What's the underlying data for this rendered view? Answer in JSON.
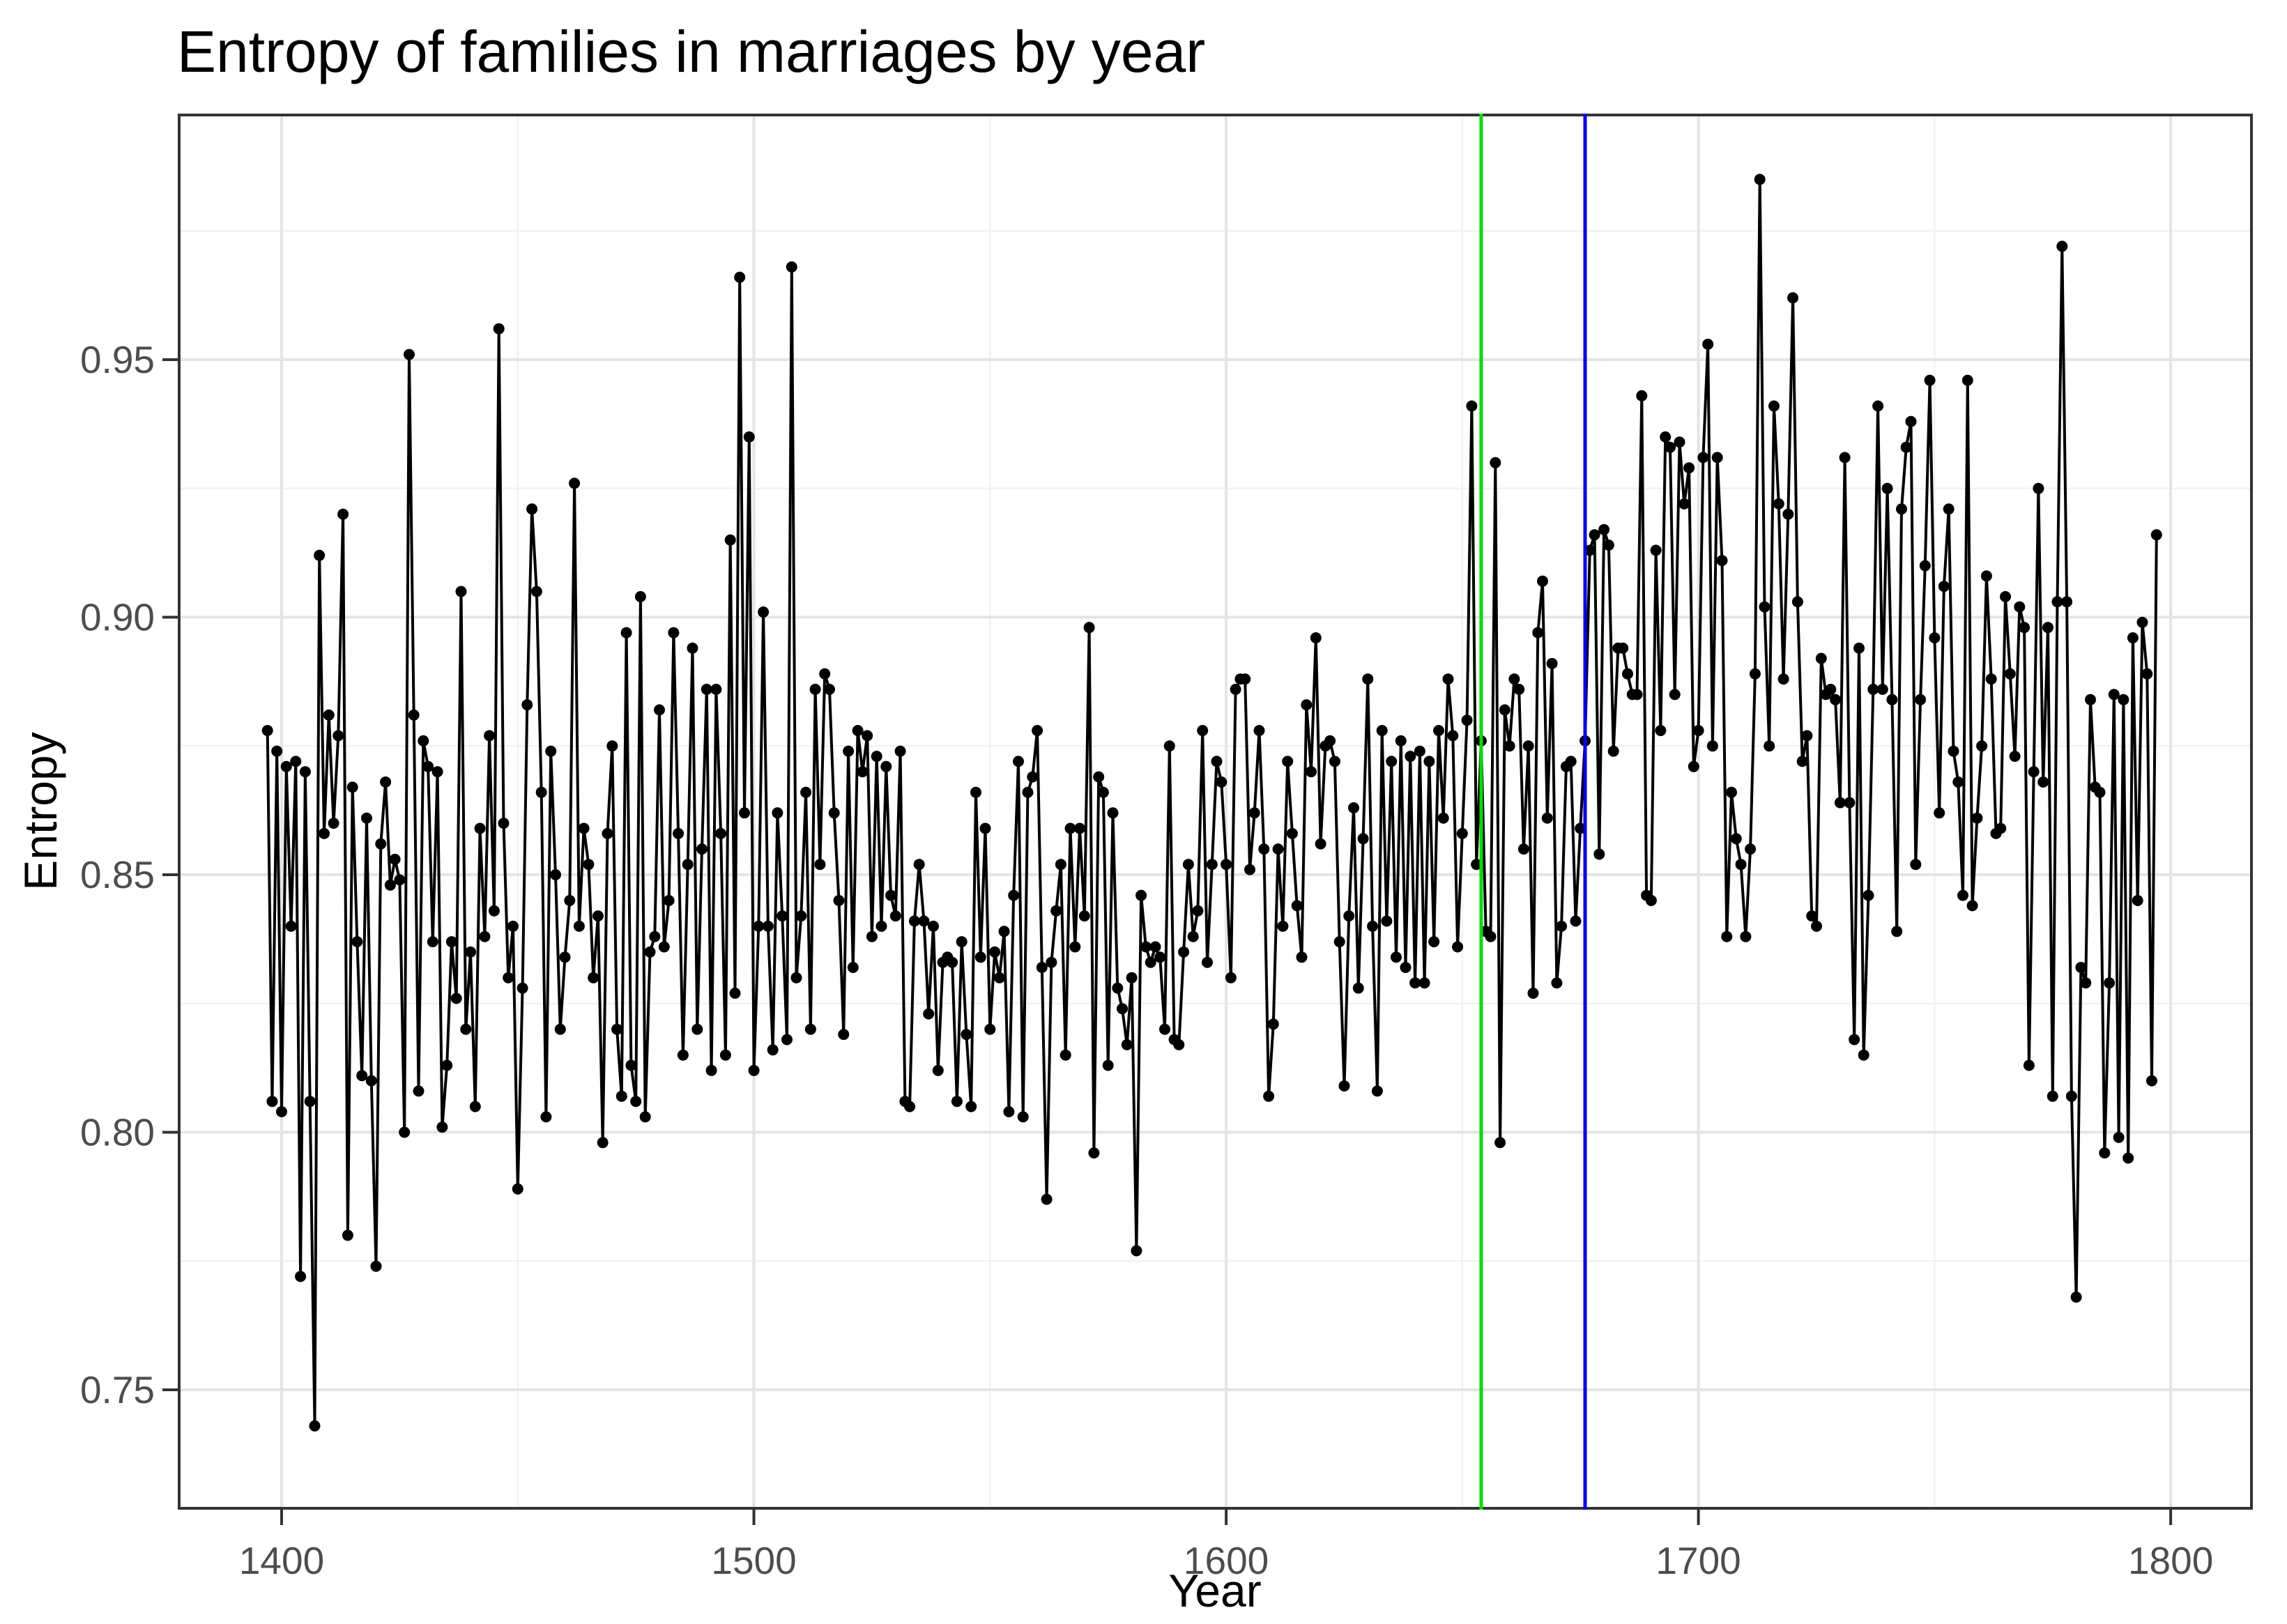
{
  "chart_data": {
    "type": "line",
    "title": "Entropy of families in marriages by year",
    "xlabel": "Year",
    "ylabel": "Entropy",
    "x_ticks": [
      1400,
      1500,
      1600,
      1700,
      1800
    ],
    "x_minor_ticks": [
      1450,
      1550,
      1650,
      1750
    ],
    "y_ticks": [
      0.75,
      0.8,
      0.85,
      0.9,
      0.95
    ],
    "y_minor_ticks": [
      0.775,
      0.825,
      0.875,
      0.925,
      0.975
    ],
    "xlim": [
      1378.3,
      1817.1
    ],
    "ylim": [
      0.727,
      0.9975
    ],
    "grid": true,
    "legend": false,
    "line_color": "#000000",
    "point_color": "#000000",
    "vlines": [
      {
        "x": 1654,
        "color": "#00E000",
        "name": "green-vline"
      },
      {
        "x": 1676,
        "color": "#0000FF",
        "name": "blue-vline"
      }
    ],
    "series": [
      {
        "name": "entropy-by-year",
        "x_start": 1397,
        "x_end": 1797,
        "x_step": 1,
        "y": [
          0.878,
          0.806,
          0.874,
          0.804,
          0.871,
          0.84,
          0.872,
          0.772,
          0.87,
          0.806,
          0.743,
          0.912,
          0.858,
          0.881,
          0.86,
          0.877,
          0.92,
          0.78,
          0.867,
          0.837,
          0.811,
          0.861,
          0.81,
          0.774,
          0.856,
          0.868,
          0.848,
          0.853,
          0.849,
          0.8,
          0.951,
          0.881,
          0.808,
          0.876,
          0.871,
          0.837,
          0.87,
          0.801,
          0.813,
          0.837,
          0.826,
          0.905,
          0.82,
          0.835,
          0.805,
          0.859,
          0.838,
          0.877,
          0.843,
          0.956,
          0.86,
          0.83,
          0.84,
          0.789,
          0.828,
          0.883,
          0.921,
          0.905,
          0.866,
          0.803,
          0.874,
          0.85,
          0.82,
          0.834,
          0.845,
          0.926,
          0.84,
          0.859,
          0.852,
          0.83,
          0.842,
          0.798,
          0.858,
          0.875,
          0.82,
          0.807,
          0.897,
          0.813,
          0.806,
          0.904,
          0.803,
          0.835,
          0.838,
          0.882,
          0.836,
          0.845,
          0.897,
          0.858,
          0.815,
          0.852,
          0.894,
          0.82,
          0.855,
          0.886,
          0.812,
          0.886,
          0.858,
          0.815,
          0.915,
          0.827,
          0.966,
          0.862,
          0.935,
          0.812,
          0.84,
          0.901,
          0.84,
          0.816,
          0.862,
          0.842,
          0.818,
          0.968,
          0.83,
          0.842,
          0.866,
          0.82,
          0.886,
          0.852,
          0.889,
          0.886,
          0.862,
          0.845,
          0.819,
          0.874,
          0.832,
          0.878,
          0.87,
          0.877,
          0.838,
          0.873,
          0.84,
          0.871,
          0.846,
          0.842,
          0.874,
          0.806,
          0.805,
          0.841,
          0.852,
          0.841,
          0.823,
          0.84,
          0.812,
          0.833,
          0.834,
          0.833,
          0.806,
          0.837,
          0.819,
          0.805,
          0.866,
          0.834,
          0.859,
          0.82,
          0.835,
          0.83,
          0.839,
          0.804,
          0.846,
          0.872,
          0.803,
          0.866,
          0.869,
          0.878,
          0.832,
          0.787,
          0.833,
          0.843,
          0.852,
          0.815,
          0.859,
          0.836,
          0.859,
          0.842,
          0.898,
          0.796,
          0.869,
          0.866,
          0.813,
          0.862,
          0.828,
          0.824,
          0.817,
          0.83,
          0.777,
          0.846,
          0.836,
          0.833,
          0.836,
          0.834,
          0.82,
          0.875,
          0.818,
          0.817,
          0.835,
          0.852,
          0.838,
          0.843,
          0.878,
          0.833,
          0.852,
          0.872,
          0.868,
          0.852,
          0.83,
          0.886,
          0.888,
          0.888,
          0.851,
          0.862,
          0.878,
          0.855,
          0.807,
          0.821,
          0.855,
          0.84,
          0.872,
          0.858,
          0.844,
          0.834,
          0.883,
          0.87,
          0.896,
          0.856,
          0.875,
          0.876,
          0.872,
          0.837,
          0.809,
          0.842,
          0.863,
          0.828,
          0.857,
          0.888,
          0.84,
          0.808,
          0.878,
          0.841,
          0.872,
          0.834,
          0.876,
          0.832,
          0.873,
          0.829,
          0.874,
          0.829,
          0.872,
          0.837,
          0.878,
          0.861,
          0.888,
          0.877,
          0.836,
          0.858,
          0.88,
          0.941,
          0.852,
          0.876,
          0.839,
          0.838,
          0.93,
          0.798,
          0.882,
          0.875,
          0.888,
          0.886,
          0.855,
          0.875,
          0.827,
          0.897,
          0.907,
          0.861,
          0.891,
          0.829,
          0.84,
          0.871,
          0.872,
          0.841,
          0.859,
          0.876,
          0.913,
          0.916,
          0.854,
          0.917,
          0.914,
          0.874,
          0.894,
          0.894,
          0.889,
          0.885,
          0.885,
          0.943,
          0.846,
          0.845,
          0.913,
          0.878,
          0.935,
          0.933,
          0.885,
          0.934,
          0.922,
          0.929,
          0.871,
          0.878,
          0.931,
          0.953,
          0.875,
          0.931,
          0.911,
          0.838,
          0.866,
          0.857,
          0.852,
          0.838,
          0.855,
          0.889,
          0.985,
          0.902,
          0.875,
          0.941,
          0.922,
          0.888,
          0.92,
          0.962,
          0.903,
          0.872,
          0.877,
          0.842,
          0.84,
          0.892,
          0.885,
          0.886,
          0.884,
          0.864,
          0.931,
          0.864,
          0.818,
          0.894,
          0.815,
          0.846,
          0.886,
          0.941,
          0.886,
          0.925,
          0.884,
          0.839,
          0.921,
          0.933,
          0.938,
          0.852,
          0.884,
          0.91,
          0.946,
          0.896,
          0.862,
          0.906,
          0.921,
          0.874,
          0.868,
          0.846,
          0.946,
          0.844,
          0.861,
          0.875,
          0.908,
          0.888,
          0.858,
          0.859,
          0.904,
          0.889,
          0.873,
          0.902,
          0.898,
          0.813,
          0.87,
          0.925,
          0.868,
          0.898,
          0.807,
          0.903,
          0.972,
          0.903,
          0.807,
          0.768,
          0.832,
          0.829,
          0.884,
          0.867,
          0.866,
          0.796,
          0.829,
          0.885,
          0.799,
          0.884,
          0.795,
          0.896,
          0.845,
          0.899,
          0.889,
          0.81,
          0.916
        ]
      }
    ],
    "style": {
      "panel_border_color": "#333333",
      "grid_major_color": "#E4E4E4",
      "grid_minor_color": "#F2F2F2",
      "tick_color": "#333333",
      "tick_label_color": "#4D4D4D",
      "point_radius": 8,
      "line_width": 4,
      "vline_width": 5
    }
  }
}
